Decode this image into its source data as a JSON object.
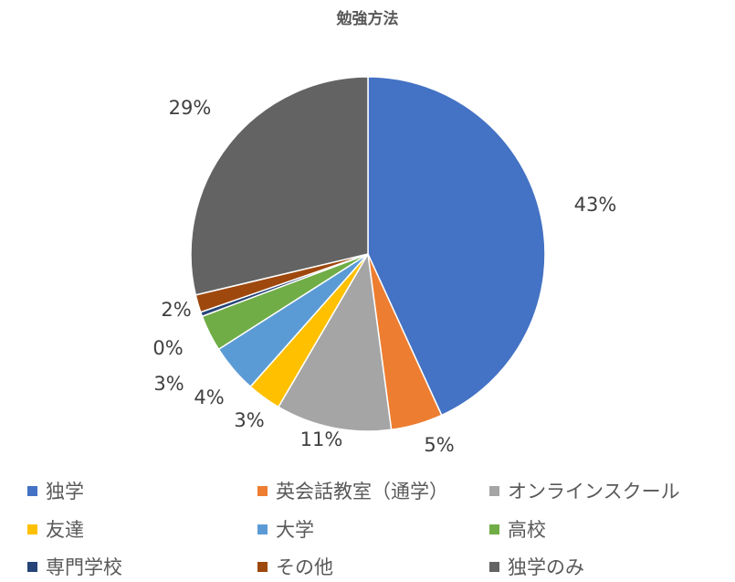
{
  "title": "勉強方法",
  "chart_data": {
    "type": "pie",
    "title": "勉強方法",
    "categories": [
      "独学",
      "英会話教室（通学）",
      "オンラインスクール",
      "友達",
      "大学",
      "高校",
      "専門学校",
      "その他",
      "独学のみ"
    ],
    "values": [
      43.0,
      4.7,
      10.5,
      3.1,
      4.4,
      3.3,
      0.4,
      1.6,
      28.6
    ],
    "data_labels": [
      "43%",
      "5%",
      "11%",
      "3%",
      "4%",
      "3%",
      "0%",
      "2%",
      "29%"
    ],
    "colors": [
      "#4472C4",
      "#ED7D31",
      "#A5A5A5",
      "#FFC000",
      "#5B9BD5",
      "#70AD47",
      "#264478",
      "#9E480E",
      "#636363"
    ],
    "legend_position": "bottom"
  }
}
